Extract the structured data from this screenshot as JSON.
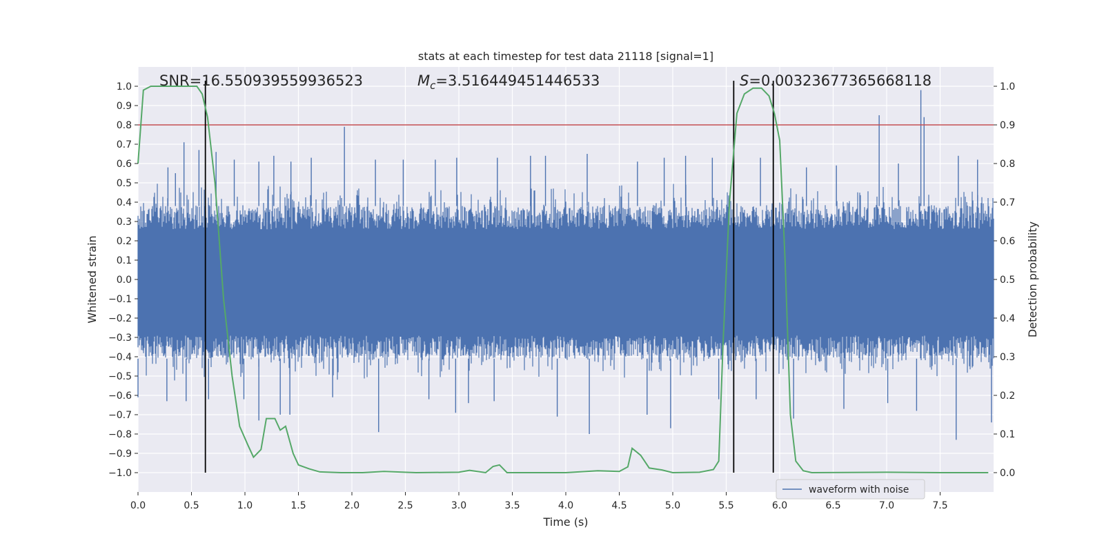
{
  "chart_data": {
    "type": "line",
    "title": "stats at each timestep for test data 21118 [signal=1]",
    "xlabel": "Time (s)",
    "ylabel_left": "Whitened strain",
    "ylabel_right": "Detection probability",
    "xlim": [
      0.0,
      8.0
    ],
    "ylim_left": [
      -1.1,
      1.1
    ],
    "ylim_right": [
      -0.05,
      1.05
    ],
    "xticks": [
      0.0,
      0.5,
      1.0,
      1.5,
      2.0,
      2.5,
      3.0,
      3.5,
      4.0,
      4.5,
      5.0,
      5.5,
      6.0,
      6.5,
      7.0,
      7.5
    ],
    "xtick_labels": [
      "0.0",
      "0.5",
      "1.0",
      "1.5",
      "2.0",
      "2.5",
      "3.0",
      "3.5",
      "4.0",
      "4.5",
      "5.0",
      "5.5",
      "6.0",
      "6.5",
      "7.0",
      "7.5"
    ],
    "yticks_left": [
      1.0,
      0.9,
      0.8,
      0.7,
      0.6,
      0.5,
      0.4,
      0.3,
      0.2,
      0.1,
      0.0,
      -0.1,
      -0.2,
      -0.3,
      -0.4,
      -0.5,
      -0.6,
      -0.7,
      -0.8,
      -0.9,
      -1.0
    ],
    "ytick_labels_left": [
      "1.0",
      "0.9",
      "0.8",
      "0.7",
      "0.6",
      "0.5",
      "0.4",
      "0.3",
      "0.2",
      "0.1",
      "0.0",
      "−0.1",
      "−0.2",
      "−0.3",
      "−0.4",
      "−0.5",
      "−0.6",
      "−0.7",
      "−0.8",
      "−0.9",
      "−1.0"
    ],
    "yticks_right": [
      1.0,
      0.9,
      0.8,
      0.7,
      0.6,
      0.5,
      0.4,
      0.3,
      0.2,
      0.1,
      0.0
    ],
    "ytick_labels_right": [
      "1.0",
      "0.9",
      "0.8",
      "0.7",
      "0.6",
      "0.5",
      "0.4",
      "0.3",
      "0.2",
      "0.1",
      "0.0"
    ],
    "annotations": {
      "snr": "SNR=16.550939559936523",
      "mc_value": "=3.516449451446533",
      "mc_symbol": "M",
      "mc_sub": "c",
      "s_symbol": "S",
      "s_value": "=0.00323677365668118"
    },
    "threshold": {
      "value": 0.9,
      "axis": "right",
      "color": "#c44e52"
    },
    "vertical_lines": [
      0.63,
      5.57,
      5.94
    ],
    "waveform": {
      "name": "waveform with noise",
      "color": "#4c72b0",
      "band_core": [
        -0.41,
        0.38
      ],
      "upper_spikes": [
        [
          0.28,
          0.58
        ],
        [
          0.35,
          0.55
        ],
        [
          0.43,
          0.71
        ],
        [
          0.57,
          0.67
        ],
        [
          0.73,
          0.66
        ],
        [
          0.9,
          0.62
        ],
        [
          1.13,
          0.61
        ],
        [
          1.27,
          0.64
        ],
        [
          1.43,
          0.61
        ],
        [
          1.62,
          0.63
        ],
        [
          1.93,
          0.79
        ],
        [
          2.22,
          0.62
        ],
        [
          2.48,
          0.62
        ],
        [
          2.78,
          0.62
        ],
        [
          2.98,
          0.63
        ],
        [
          3.36,
          0.63
        ],
        [
          3.67,
          0.64
        ],
        [
          3.81,
          0.64
        ],
        [
          4.2,
          0.65
        ],
        [
          4.67,
          0.61
        ],
        [
          4.92,
          0.63
        ],
        [
          5.12,
          0.64
        ],
        [
          5.37,
          0.63
        ],
        [
          5.82,
          0.63
        ],
        [
          6.25,
          0.58
        ],
        [
          6.53,
          0.59
        ],
        [
          6.93,
          0.85
        ],
        [
          7.11,
          0.6
        ],
        [
          7.32,
          0.98
        ],
        [
          7.35,
          0.84
        ],
        [
          7.67,
          0.64
        ],
        [
          7.85,
          0.62
        ]
      ],
      "lower_spikes": [
        [
          0.0,
          -0.61
        ],
        [
          0.27,
          -0.63
        ],
        [
          0.45,
          -0.63
        ],
        [
          0.66,
          -0.62
        ],
        [
          0.99,
          -0.62
        ],
        [
          1.13,
          -0.73
        ],
        [
          1.33,
          -0.7
        ],
        [
          1.42,
          -0.7
        ],
        [
          1.82,
          -0.61
        ],
        [
          2.25,
          -0.79
        ],
        [
          2.72,
          -0.62
        ],
        [
          2.97,
          -0.69
        ],
        [
          3.09,
          -0.64
        ],
        [
          3.33,
          -0.63
        ],
        [
          3.92,
          -0.71
        ],
        [
          4.22,
          -0.8
        ],
        [
          4.76,
          -0.7
        ],
        [
          4.98,
          -0.77
        ],
        [
          5.43,
          -0.62
        ],
        [
          5.78,
          -0.62
        ],
        [
          6.13,
          -0.72
        ],
        [
          6.6,
          -0.67
        ],
        [
          7.01,
          -0.64
        ],
        [
          7.28,
          -0.68
        ],
        [
          7.65,
          -0.83
        ],
        [
          7.98,
          -0.74
        ]
      ]
    },
    "probability": {
      "color": "#55a868",
      "points": [
        [
          0.0,
          0.8
        ],
        [
          0.05,
          0.99
        ],
        [
          0.12,
          1.0
        ],
        [
          0.3,
          1.0
        ],
        [
          0.55,
          1.0
        ],
        [
          0.6,
          0.98
        ],
        [
          0.65,
          0.92
        ],
        [
          0.72,
          0.75
        ],
        [
          0.8,
          0.45
        ],
        [
          0.88,
          0.25
        ],
        [
          0.95,
          0.12
        ],
        [
          1.03,
          0.07
        ],
        [
          1.08,
          0.04
        ],
        [
          1.15,
          0.06
        ],
        [
          1.2,
          0.14
        ],
        [
          1.28,
          0.14
        ],
        [
          1.33,
          0.11
        ],
        [
          1.38,
          0.12
        ],
        [
          1.45,
          0.05
        ],
        [
          1.5,
          0.02
        ],
        [
          1.6,
          0.01
        ],
        [
          1.7,
          0.002
        ],
        [
          1.9,
          0.0
        ],
        [
          2.1,
          0.0
        ],
        [
          2.3,
          0.003
        ],
        [
          2.6,
          0.0
        ],
        [
          3.0,
          0.001
        ],
        [
          3.1,
          0.006
        ],
        [
          3.25,
          0.0
        ],
        [
          3.32,
          0.016
        ],
        [
          3.38,
          0.02
        ],
        [
          3.45,
          0.0
        ],
        [
          3.7,
          0.0
        ],
        [
          4.0,
          0.0
        ],
        [
          4.3,
          0.005
        ],
        [
          4.5,
          0.003
        ],
        [
          4.58,
          0.015
        ],
        [
          4.62,
          0.063
        ],
        [
          4.7,
          0.045
        ],
        [
          4.78,
          0.012
        ],
        [
          4.9,
          0.007
        ],
        [
          5.0,
          0.0
        ],
        [
          5.25,
          0.001
        ],
        [
          5.38,
          0.008
        ],
        [
          5.43,
          0.03
        ],
        [
          5.47,
          0.33
        ],
        [
          5.53,
          0.7
        ],
        [
          5.6,
          0.93
        ],
        [
          5.67,
          0.98
        ],
        [
          5.75,
          0.995
        ],
        [
          5.83,
          0.995
        ],
        [
          5.9,
          0.975
        ],
        [
          5.95,
          0.93
        ],
        [
          6.0,
          0.86
        ],
        [
          6.05,
          0.55
        ],
        [
          6.1,
          0.15
        ],
        [
          6.15,
          0.03
        ],
        [
          6.22,
          0.005
        ],
        [
          6.3,
          0.0
        ],
        [
          7.0,
          0.001
        ],
        [
          7.5,
          0.0
        ],
        [
          7.95,
          0.0
        ]
      ]
    },
    "legend": {
      "placement": "lower-right",
      "entries": [
        {
          "label": "waveform with noise",
          "color": "#4c72b0"
        }
      ]
    }
  }
}
